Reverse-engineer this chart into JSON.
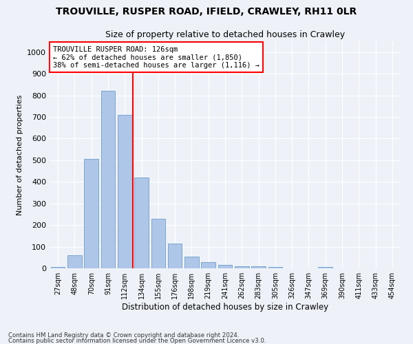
{
  "title1": "TROUVILLE, RUSPER ROAD, IFIELD, CRAWLEY, RH11 0LR",
  "title2": "Size of property relative to detached houses in Crawley",
  "xlabel": "Distribution of detached houses by size in Crawley",
  "ylabel": "Number of detached properties",
  "categories": [
    "27sqm",
    "48sqm",
    "70sqm",
    "91sqm",
    "112sqm",
    "134sqm",
    "155sqm",
    "176sqm",
    "198sqm",
    "219sqm",
    "241sqm",
    "262sqm",
    "283sqm",
    "305sqm",
    "326sqm",
    "347sqm",
    "369sqm",
    "390sqm",
    "411sqm",
    "433sqm",
    "454sqm"
  ],
  "bar_heights": [
    5,
    60,
    505,
    820,
    710,
    420,
    230,
    115,
    55,
    30,
    15,
    10,
    10,
    5,
    0,
    0,
    5,
    0,
    0,
    0,
    0
  ],
  "bar_color": "#aec6e8",
  "bar_edge_color": "#5a8fc2",
  "vline_index": 4.5,
  "annotation_text": "TROUVILLE RUSPER ROAD: 126sqm\n← 62% of detached houses are smaller (1,850)\n38% of semi-detached houses are larger (1,116) →",
  "annotation_box_color": "white",
  "annotation_box_edge_color": "red",
  "vline_color": "red",
  "ylim": [
    0,
    1050
  ],
  "yticks": [
    0,
    100,
    200,
    300,
    400,
    500,
    600,
    700,
    800,
    900,
    1000
  ],
  "footnote1": "Contains HM Land Registry data © Crown copyright and database right 2024.",
  "footnote2": "Contains public sector information licensed under the Open Government Licence v3.0.",
  "bg_color": "#eef2f8",
  "grid_color": "white",
  "title1_fontsize": 10,
  "title2_fontsize": 9,
  "ylabel_fontsize": 8,
  "xlabel_fontsize": 8.5
}
